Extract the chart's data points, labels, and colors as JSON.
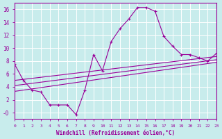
{
  "title": "",
  "xlabel": "Windchill (Refroidissement éolien,°C)",
  "ylabel": "",
  "bg_color": "#c8ecec",
  "line_color": "#990099",
  "grid_color": "#ffffff",
  "xmin": 0,
  "xmax": 23,
  "ymin": -1,
  "ymax": 17,
  "yticks": [
    0,
    2,
    4,
    6,
    8,
    10,
    12,
    14,
    16
  ],
  "ytick_labels": [
    "-0",
    "2",
    "4",
    "6",
    "8",
    "10",
    "12",
    "14",
    "16"
  ],
  "xticks": [
    0,
    1,
    2,
    3,
    4,
    5,
    6,
    7,
    8,
    9,
    10,
    11,
    12,
    13,
    14,
    15,
    16,
    17,
    18,
    19,
    20,
    21,
    22,
    23
  ],
  "main_line_x": [
    0,
    1,
    2,
    3,
    4,
    5,
    6,
    7,
    8,
    9,
    10,
    11,
    12,
    13,
    14,
    15,
    16,
    17,
    18,
    19,
    20,
    21,
    22,
    23
  ],
  "main_line_y": [
    7.5,
    5.0,
    3.5,
    3.2,
    1.2,
    1.2,
    1.2,
    -0.3,
    3.5,
    9.0,
    6.5,
    11.0,
    13.0,
    14.5,
    16.3,
    16.3,
    15.7,
    11.8,
    10.3,
    9.0,
    9.0,
    8.5,
    8.0,
    9.2
  ],
  "line2_x": [
    0,
    23
  ],
  "line2_y": [
    5.0,
    8.7
  ],
  "line3_x": [
    0,
    23
  ],
  "line3_y": [
    4.2,
    8.2
  ],
  "line4_x": [
    0,
    23
  ],
  "line4_y": [
    3.3,
    7.8
  ]
}
